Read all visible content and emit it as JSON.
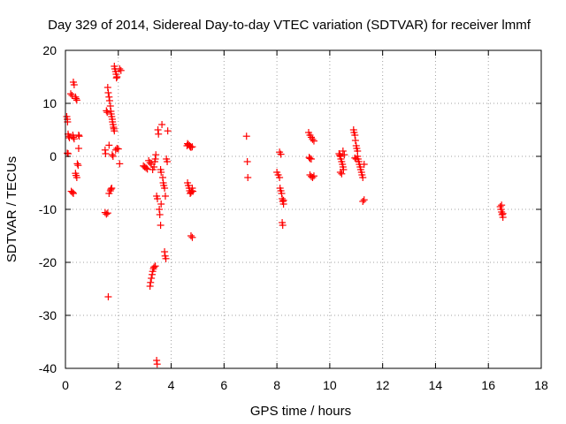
{
  "chart_data": {
    "type": "scatter",
    "title": "Day 329 of 2014, Sidereal Day-to-day VTEC variation (SDTVAR) for receiver lmmf",
    "xlabel": "GPS time / hours",
    "ylabel": "SDTVAR / TECUs",
    "xlim": [
      0,
      18
    ],
    "ylim": [
      -40,
      20
    ],
    "xticks": [
      0,
      2,
      4,
      6,
      8,
      10,
      12,
      14,
      16,
      18
    ],
    "yticks": [
      -40,
      -30,
      -20,
      -10,
      0,
      10,
      20
    ],
    "grid": true,
    "marker": "+",
    "color": "#ff0000",
    "series": [
      {
        "name": "SDTVAR",
        "points": [
          [
            0.05,
            7.5
          ],
          [
            0.07,
            7.0
          ],
          [
            0.08,
            6.5
          ],
          [
            0.1,
            4.2
          ],
          [
            0.12,
            3.8
          ],
          [
            0.15,
            3.5
          ],
          [
            0.07,
            0.6
          ],
          [
            0.1,
            0.5
          ],
          [
            0.2,
            11.8
          ],
          [
            0.25,
            11.5
          ],
          [
            0.28,
            4.0
          ],
          [
            0.3,
            3.6
          ],
          [
            0.33,
            3.3
          ],
          [
            0.22,
            -6.6
          ],
          [
            0.27,
            -6.8
          ],
          [
            0.3,
            -7.0
          ],
          [
            0.3,
            14.0
          ],
          [
            0.33,
            13.5
          ],
          [
            0.38,
            11.2
          ],
          [
            0.4,
            10.9
          ],
          [
            0.43,
            10.6
          ],
          [
            0.38,
            -3.2
          ],
          [
            0.4,
            -3.6
          ],
          [
            0.43,
            -4.0
          ],
          [
            0.45,
            -1.4
          ],
          [
            0.48,
            -1.7
          ],
          [
            0.5,
            1.5
          ],
          [
            0.5,
            4.0
          ],
          [
            0.52,
            3.8
          ],
          [
            1.5,
            1.2
          ],
          [
            1.52,
            0.5
          ],
          [
            1.55,
            8.6
          ],
          [
            1.58,
            8.3
          ],
          [
            1.5,
            -10.6
          ],
          [
            1.55,
            -10.9
          ],
          [
            1.6,
            -10.7
          ],
          [
            1.65,
            2.1
          ],
          [
            1.62,
            -26.5
          ],
          [
            1.6,
            13.0
          ],
          [
            1.62,
            12.0
          ],
          [
            1.65,
            11.2
          ],
          [
            1.67,
            10.5
          ],
          [
            1.7,
            9.5
          ],
          [
            1.72,
            8.5
          ],
          [
            1.73,
            8.0
          ],
          [
            1.75,
            7.5
          ],
          [
            1.77,
            7.0
          ],
          [
            1.78,
            6.5
          ],
          [
            1.8,
            6.0
          ],
          [
            1.82,
            5.5
          ],
          [
            1.83,
            5.2
          ],
          [
            1.85,
            4.8
          ],
          [
            1.65,
            -7.0
          ],
          [
            1.7,
            -6.5
          ],
          [
            1.72,
            -6.2
          ],
          [
            1.75,
            -6.0
          ],
          [
            1.77,
            0.3
          ],
          [
            1.8,
            0.0
          ],
          [
            1.85,
            17.0
          ],
          [
            1.87,
            16.5
          ],
          [
            1.9,
            16.0
          ],
          [
            1.92,
            15.5
          ],
          [
            1.95,
            15.0
          ],
          [
            1.93,
            14.8
          ],
          [
            2.05,
            16.5
          ],
          [
            2.1,
            16.2
          ],
          [
            1.9,
            1.2
          ],
          [
            1.95,
            1.5
          ],
          [
            2.0,
            1.4
          ],
          [
            2.05,
            -1.4
          ],
          [
            2.95,
            -1.8
          ],
          [
            3.0,
            -2.0
          ],
          [
            3.05,
            -2.2
          ],
          [
            3.1,
            -2.4
          ],
          [
            3.15,
            -0.8
          ],
          [
            3.2,
            -1.2
          ],
          [
            3.25,
            -1.5
          ],
          [
            3.2,
            -24.5
          ],
          [
            3.22,
            -23.8
          ],
          [
            3.25,
            -23.0
          ],
          [
            3.28,
            -22.3
          ],
          [
            3.3,
            -21.7
          ],
          [
            3.33,
            -21.2
          ],
          [
            3.35,
            -20.9
          ],
          [
            3.4,
            -20.7
          ],
          [
            3.3,
            -2.5
          ],
          [
            3.35,
            -2.0
          ],
          [
            3.38,
            -1.0
          ],
          [
            3.4,
            -0.5
          ],
          [
            3.42,
            0.3
          ],
          [
            3.45,
            -7.5
          ],
          [
            3.48,
            -8.0
          ],
          [
            3.5,
            5.0
          ],
          [
            3.52,
            4.2
          ],
          [
            3.55,
            -10.0
          ],
          [
            3.57,
            -11.0
          ],
          [
            3.6,
            -13.0
          ],
          [
            3.62,
            -9.0
          ],
          [
            3.45,
            -38.5
          ],
          [
            3.47,
            -39.2
          ],
          [
            3.6,
            -2.5
          ],
          [
            3.62,
            -3.0
          ],
          [
            3.65,
            6.0
          ],
          [
            3.68,
            -4.0
          ],
          [
            3.7,
            -5.0
          ],
          [
            3.72,
            -5.5
          ],
          [
            3.75,
            -6.0
          ],
          [
            3.78,
            -7.5
          ],
          [
            3.75,
            -18.0
          ],
          [
            3.77,
            -18.8
          ],
          [
            3.8,
            -19.3
          ],
          [
            3.82,
            -0.5
          ],
          [
            3.85,
            -1.0
          ],
          [
            3.87,
            4.8
          ],
          [
            4.6,
            2.0
          ],
          [
            4.62,
            2.4
          ],
          [
            4.65,
            2.2
          ],
          [
            4.7,
            2.0
          ],
          [
            4.72,
            1.8
          ],
          [
            4.75,
            1.7
          ],
          [
            4.8,
            1.8
          ],
          [
            4.62,
            -5.0
          ],
          [
            4.65,
            -5.5
          ],
          [
            4.68,
            -6.0
          ],
          [
            4.7,
            -6.5
          ],
          [
            4.72,
            -7.0
          ],
          [
            4.75,
            -6.8
          ],
          [
            4.78,
            -6.5
          ],
          [
            4.8,
            -6.0
          ],
          [
            4.82,
            -6.6
          ],
          [
            4.75,
            -15.0
          ],
          [
            4.8,
            -15.3
          ],
          [
            6.85,
            3.8
          ],
          [
            6.88,
            -1.0
          ],
          [
            6.9,
            -4.0
          ],
          [
            8.0,
            -3.0
          ],
          [
            8.05,
            -3.5
          ],
          [
            8.1,
            -4.0
          ],
          [
            8.12,
            -6.0
          ],
          [
            8.15,
            -6.5
          ],
          [
            8.18,
            -7.0
          ],
          [
            8.2,
            -8.0
          ],
          [
            8.22,
            -8.5
          ],
          [
            8.25,
            -9.0
          ],
          [
            8.1,
            0.8
          ],
          [
            8.15,
            0.4
          ],
          [
            8.2,
            -12.5
          ],
          [
            8.22,
            -13.0
          ],
          [
            8.25,
            -8.3
          ],
          [
            9.2,
            4.5
          ],
          [
            9.25,
            4.0
          ],
          [
            9.3,
            3.6
          ],
          [
            9.35,
            3.2
          ],
          [
            9.4,
            2.9
          ],
          [
            9.22,
            -0.2
          ],
          [
            9.25,
            -0.4
          ],
          [
            9.3,
            -0.5
          ],
          [
            9.25,
            -3.5
          ],
          [
            9.3,
            -3.8
          ],
          [
            9.35,
            -4.0
          ],
          [
            9.4,
            -3.7
          ],
          [
            10.35,
            0.5
          ],
          [
            10.38,
            0.2
          ],
          [
            10.4,
            0.0
          ],
          [
            10.42,
            -0.5
          ],
          [
            10.45,
            -1.0
          ],
          [
            10.48,
            -1.5
          ],
          [
            10.5,
            -2.0
          ],
          [
            10.52,
            -2.5
          ],
          [
            10.4,
            -3.0
          ],
          [
            10.45,
            -3.3
          ],
          [
            10.5,
            1.0
          ],
          [
            10.55,
            0.3
          ],
          [
            10.9,
            5.0
          ],
          [
            10.92,
            4.5
          ],
          [
            10.95,
            4.0
          ],
          [
            10.97,
            3.0
          ],
          [
            11.0,
            2.0
          ],
          [
            11.02,
            1.5
          ],
          [
            11.05,
            1.0
          ],
          [
            11.07,
            -0.5
          ],
          [
            11.1,
            -1.0
          ],
          [
            11.12,
            -1.5
          ],
          [
            11.15,
            -2.0
          ],
          [
            11.17,
            -2.5
          ],
          [
            11.2,
            -3.0
          ],
          [
            11.22,
            -3.5
          ],
          [
            11.25,
            -4.0
          ],
          [
            10.95,
            -0.3
          ],
          [
            11.0,
            -0.5
          ],
          [
            11.05,
            0.0
          ],
          [
            11.3,
            -1.5
          ],
          [
            11.25,
            -8.5
          ],
          [
            11.3,
            -8.2
          ],
          [
            16.45,
            -9.5
          ],
          [
            16.48,
            -10.0
          ],
          [
            16.5,
            -10.5
          ],
          [
            16.52,
            -11.0
          ],
          [
            16.55,
            -11.5
          ],
          [
            16.5,
            -9.2
          ],
          [
            16.55,
            -10.8
          ]
        ]
      }
    ]
  }
}
